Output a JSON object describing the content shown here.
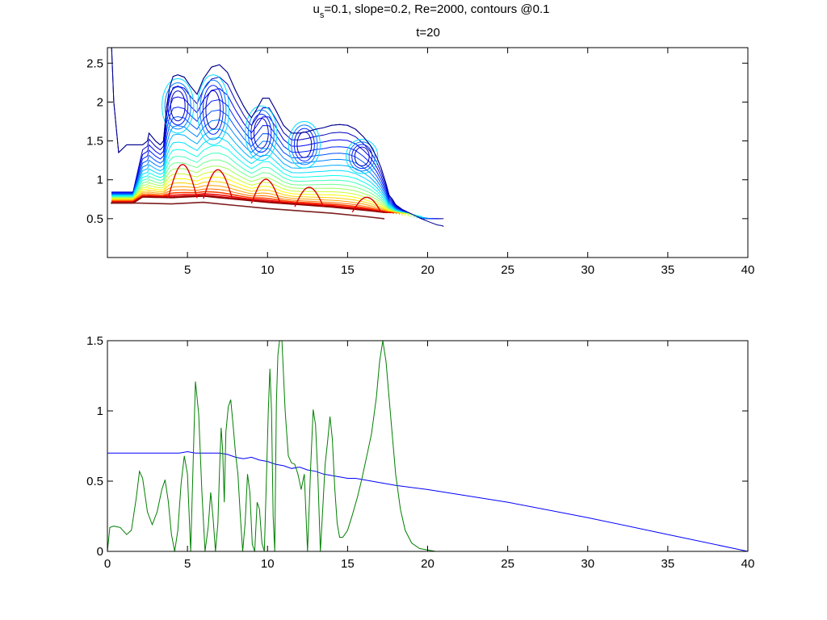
{
  "figure": {
    "title_line1_prefix": "u",
    "title_line1_sub": "s",
    "title_line1_rest": "=0.1, slope=0.2, Re=2000, contours @0.1",
    "title_line2": "t=20"
  },
  "chart_data": [
    {
      "type": "contour",
      "title": "",
      "xlabel": "",
      "ylabel": "",
      "xlim": [
        0,
        40
      ],
      "ylim": [
        0,
        2.7
      ],
      "xticks": [
        5,
        10,
        15,
        20,
        25,
        30,
        35,
        40
      ],
      "yticks": [
        0.5,
        1,
        1.5,
        2,
        2.5
      ],
      "contour_interval": 0.1,
      "colormap": "jet",
      "front_position_x": 21,
      "slope_line": {
        "name": "",
        "color": "#7f1f1f",
        "x": [
          0.2,
          2,
          4,
          6,
          8,
          10,
          12,
          14,
          16,
          17.3
        ],
        "y": [
          0.7,
          0.7,
          0.69,
          0.71,
          0.67,
          0.63,
          0.6,
          0.57,
          0.53,
          0.5
        ]
      },
      "outer_envelope": {
        "name": "",
        "color": "#00008f",
        "x": [
          0.25,
          0.4,
          0.7,
          1.2,
          1.6,
          2.2,
          2.5,
          2.6,
          2.8,
          3.0,
          3.3,
          3.5,
          3.7,
          3.9,
          4.1,
          4.4,
          4.8,
          5.2,
          5.6,
          6.0,
          6.5,
          7.0,
          7.5,
          8.0,
          8.5,
          8.8,
          9.0,
          9.3,
          9.7,
          10.1,
          10.5,
          11.0,
          11.5,
          12.0,
          12.5,
          13.0,
          13.5,
          14.0,
          14.5,
          15.0,
          15.5,
          16.0,
          16.4,
          16.8,
          17.1,
          17.4,
          17.6,
          17.8,
          18.0,
          18.4,
          19.0,
          19.6,
          20.2,
          20.6,
          20.9,
          21.0
        ],
        "y": [
          2.75,
          2.0,
          1.35,
          1.45,
          1.45,
          1.45,
          1.5,
          1.6,
          1.55,
          1.5,
          1.45,
          1.5,
          1.95,
          2.2,
          2.33,
          2.35,
          2.32,
          2.2,
          2.1,
          2.3,
          2.45,
          2.48,
          2.38,
          2.15,
          1.95,
          1.85,
          1.8,
          1.9,
          2.05,
          2.05,
          1.9,
          1.7,
          1.6,
          1.6,
          1.62,
          1.65,
          1.67,
          1.7,
          1.71,
          1.7,
          1.65,
          1.55,
          1.45,
          1.3,
          1.15,
          0.95,
          0.8,
          0.75,
          0.68,
          0.62,
          0.56,
          0.5,
          0.45,
          0.42,
          0.41,
          0.4
        ]
      },
      "crest_positions_x": [
        4.7,
        6.9,
        9.9,
        12.6,
        16.2
      ]
    },
    {
      "type": "line",
      "title": "",
      "xlabel": "",
      "ylabel": "",
      "xlim": [
        0,
        40
      ],
      "ylim": [
        0,
        1.5
      ],
      "xticks": [
        0,
        5,
        10,
        15,
        20,
        25,
        30,
        35,
        40
      ],
      "yticks": [
        0,
        0.5,
        1,
        1.5
      ],
      "series": [
        {
          "color": "#0000ff",
          "x": [
            0,
            4.5,
            5.0,
            5.5,
            6.0,
            6.5,
            7.0,
            7.5,
            8.0,
            8.5,
            9.0,
            9.5,
            10.0,
            10.5,
            11.0,
            11.5,
            12.0,
            12.5,
            13.0,
            13.5,
            14.0,
            14.5,
            15.0,
            15.5,
            16.0,
            17.0,
            18.0,
            20.0,
            25.0,
            30.0,
            35.0,
            40.0
          ],
          "y": [
            0.7,
            0.7,
            0.71,
            0.7,
            0.7,
            0.7,
            0.7,
            0.69,
            0.67,
            0.66,
            0.67,
            0.65,
            0.64,
            0.62,
            0.61,
            0.59,
            0.6,
            0.58,
            0.57,
            0.55,
            0.54,
            0.53,
            0.52,
            0.52,
            0.51,
            0.49,
            0.47,
            0.44,
            0.35,
            0.24,
            0.12,
            0.0
          ]
        },
        {
          "color": "#007f00",
          "x": [
            0,
            0.15,
            0.4,
            0.8,
            1.2,
            1.5,
            1.8,
            2.0,
            2.2,
            2.5,
            2.8,
            3.1,
            3.4,
            3.6,
            3.8,
            4.0,
            4.2,
            4.4,
            4.6,
            4.8,
            5.0,
            5.2,
            5.35,
            5.5,
            5.7,
            5.9,
            6.1,
            6.3,
            6.45,
            6.6,
            6.75,
            6.9,
            7.0,
            7.1,
            7.2,
            7.3,
            7.4,
            7.55,
            7.7,
            7.85,
            8.0,
            8.15,
            8.3,
            8.45,
            8.6,
            8.75,
            8.9,
            9.05,
            9.2,
            9.35,
            9.5,
            9.65,
            9.8,
            9.95,
            10.05,
            10.15,
            10.25,
            10.35,
            10.45,
            10.55,
            10.65,
            10.75,
            10.9,
            11.1,
            11.3,
            11.5,
            11.7,
            11.9,
            12.1,
            12.3,
            12.5,
            12.7,
            12.85,
            13.0,
            13.15,
            13.3,
            13.45,
            13.6,
            13.75,
            13.9,
            14.05,
            14.2,
            14.35,
            14.5,
            14.7,
            15.0,
            15.3,
            15.6,
            15.9,
            16.2,
            16.5,
            16.8,
            17.0,
            17.2,
            17.4,
            17.7,
            18.0,
            18.3,
            18.6,
            19.0,
            19.5,
            20.0,
            20.5,
            21.0,
            21.5,
            22.0,
            30.0,
            40.0
          ],
          "y": [
            0.0,
            0.17,
            0.18,
            0.17,
            0.12,
            0.15,
            0.38,
            0.57,
            0.52,
            0.28,
            0.19,
            0.28,
            0.44,
            0.51,
            0.36,
            0.12,
            0.0,
            0.15,
            0.48,
            0.68,
            0.55,
            0.0,
            0.62,
            1.21,
            0.98,
            0.42,
            0.0,
            0.18,
            0.42,
            0.24,
            0.0,
            0.2,
            0.57,
            0.88,
            0.72,
            0.35,
            0.85,
            1.03,
            1.08,
            0.9,
            0.7,
            0.55,
            0.26,
            0.0,
            0.2,
            0.55,
            0.42,
            0.05,
            0.0,
            0.35,
            0.3,
            0.06,
            0.0,
            0.6,
            1.0,
            1.3,
            1.0,
            0.25,
            0.0,
            1.05,
            1.4,
            1.5,
            1.5,
            1.0,
            0.68,
            0.63,
            0.62,
            0.55,
            0.44,
            0.55,
            0.0,
            0.62,
            1.01,
            0.9,
            0.52,
            0.0,
            0.3,
            0.62,
            0.78,
            0.96,
            0.8,
            0.45,
            0.2,
            0.1,
            0.1,
            0.15,
            0.26,
            0.38,
            0.52,
            0.68,
            0.84,
            1.1,
            1.35,
            1.5,
            1.35,
            0.95,
            0.55,
            0.3,
            0.15,
            0.06,
            0.02,
            0.01,
            0.0,
            0.0,
            0.0,
            0.0,
            0.0,
            0.0
          ]
        }
      ]
    }
  ]
}
